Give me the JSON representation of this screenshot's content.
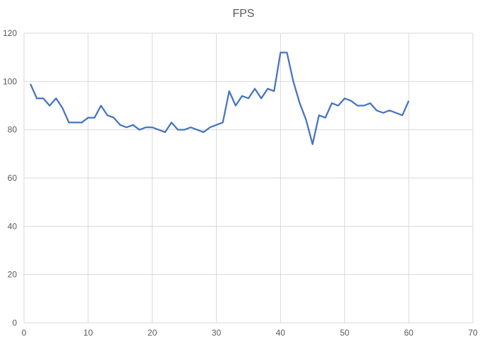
{
  "chart_data": {
    "type": "line",
    "title": "FPS",
    "x": [
      1,
      2,
      3,
      4,
      5,
      6,
      7,
      8,
      9,
      10,
      11,
      12,
      13,
      14,
      15,
      16,
      17,
      18,
      19,
      20,
      21,
      22,
      23,
      24,
      25,
      26,
      27,
      28,
      29,
      30,
      31,
      32,
      33,
      34,
      35,
      36,
      37,
      38,
      39,
      40,
      41,
      42,
      43,
      44,
      45,
      46,
      47,
      48,
      49,
      50,
      51,
      52,
      53,
      54,
      55,
      56,
      57,
      58,
      59,
      60
    ],
    "series": [
      {
        "name": "FPS",
        "color": "#4472c4",
        "values": [
          99,
          93,
          93,
          90,
          93,
          89,
          83,
          83,
          83,
          85,
          85,
          90,
          86,
          85,
          82,
          81,
          82,
          80,
          81,
          81,
          80,
          79,
          83,
          80,
          80,
          81,
          80,
          79,
          81,
          82,
          83,
          96,
          90,
          94,
          93,
          97,
          93,
          97,
          96,
          112,
          112,
          100,
          91,
          84,
          74,
          86,
          85,
          91,
          90,
          93,
          92,
          90,
          90,
          91,
          88,
          87,
          88,
          87,
          86,
          92
        ]
      }
    ],
    "xlim": [
      0,
      70
    ],
    "xticks": [
      0,
      10,
      20,
      30,
      40,
      50,
      60,
      70
    ],
    "ylim": [
      0,
      120
    ],
    "yticks": [
      0,
      20,
      40,
      60,
      80,
      100,
      120
    ],
    "grid": true
  }
}
